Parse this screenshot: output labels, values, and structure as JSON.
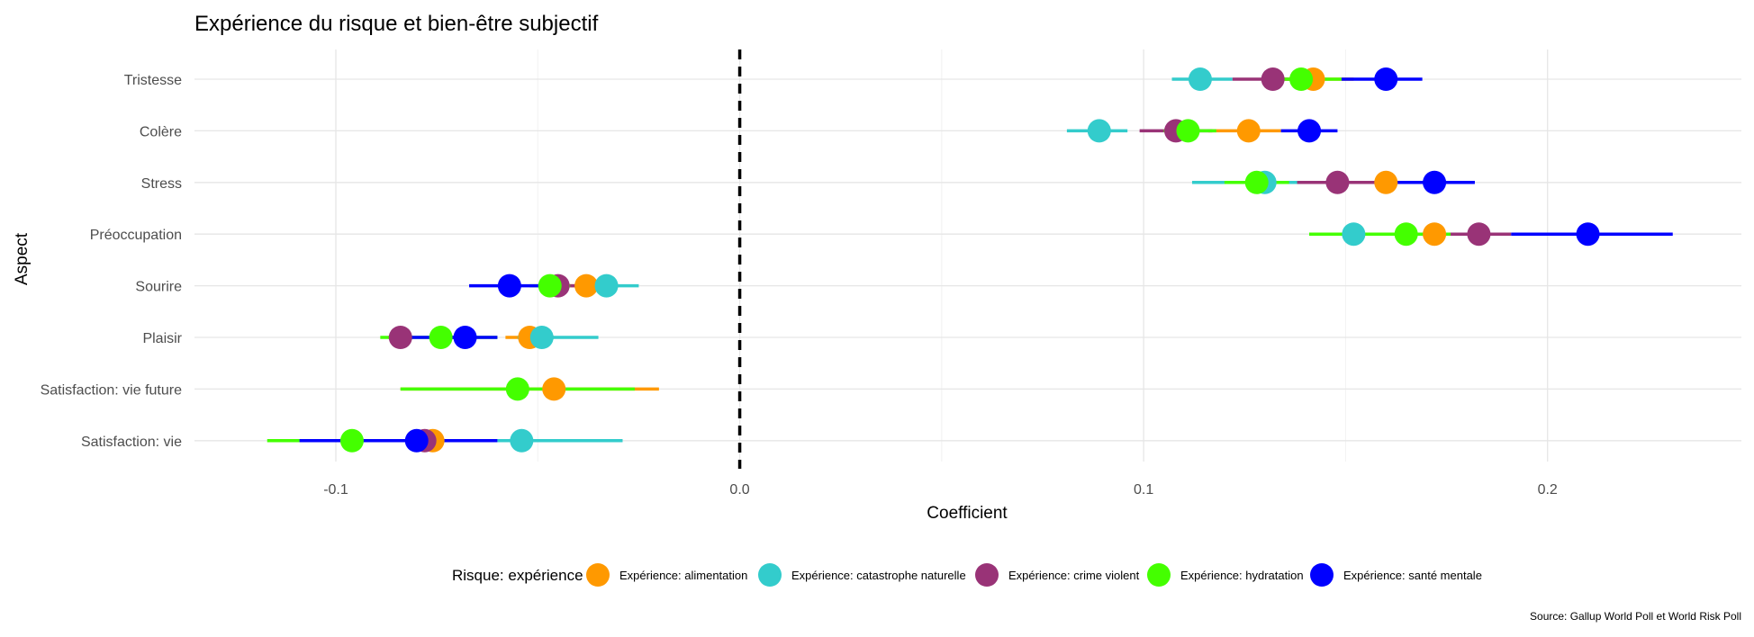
{
  "chart_data": {
    "type": "scatter",
    "title": "Expérience du risque et bien-être subjectif",
    "xlabel": "Coefficient",
    "ylabel": "Aspect",
    "caption": "Source: Gallup World Poll et World Risk Poll",
    "xlim": [
      -0.135,
      0.248
    ],
    "x_ticks": [
      {
        "value": -0.1,
        "label": "-0.1"
      },
      {
        "value": 0.0,
        "label": "0.0"
      },
      {
        "value": 0.1,
        "label": "0.1"
      },
      {
        "value": 0.2,
        "label": "0.2"
      }
    ],
    "reference_line": {
      "x": 0.0,
      "style": "dashed"
    },
    "grid": true,
    "legend": {
      "title": "Risque: expérience",
      "position": "bottom"
    },
    "categories": [
      "Tristesse",
      "Colère",
      "Stress",
      "Préoccupation",
      "Sourire",
      "Plaisir",
      "Satisfaction: vie future",
      "Satisfaction: vie"
    ],
    "series": [
      {
        "name": "Expérience: alimentation",
        "color": "#FF9900",
        "points": [
          {
            "category": "Tristesse",
            "x": 0.142,
            "lo": 0.132,
            "hi": 0.152
          },
          {
            "category": "Colère",
            "x": 0.126,
            "lo": 0.116,
            "hi": 0.134
          },
          {
            "category": "Stress",
            "x": 0.16,
            "lo": 0.15,
            "hi": 0.17
          },
          {
            "category": "Préoccupation",
            "x": 0.172,
            "lo": 0.162,
            "hi": 0.182
          },
          {
            "category": "Sourire",
            "x": -0.038,
            "lo": -0.044,
            "hi": -0.03
          },
          {
            "category": "Plaisir",
            "x": -0.052,
            "lo": -0.058,
            "hi": -0.046
          },
          {
            "category": "Satisfaction: vie future",
            "x": -0.046,
            "lo": -0.084,
            "hi": -0.02
          },
          {
            "category": "Satisfaction: vie",
            "x": -0.076,
            "lo": -0.082,
            "hi": -0.07
          }
        ]
      },
      {
        "name": "Expérience: catastrophe naturelle",
        "color": "#33CCCC",
        "points": [
          {
            "category": "Tristesse",
            "x": 0.114,
            "lo": 0.107,
            "hi": 0.122
          },
          {
            "category": "Colère",
            "x": 0.089,
            "lo": 0.081,
            "hi": 0.096
          },
          {
            "category": "Stress",
            "x": 0.13,
            "lo": 0.112,
            "hi": 0.148
          },
          {
            "category": "Préoccupation",
            "x": 0.152,
            "lo": 0.141,
            "hi": 0.163
          },
          {
            "category": "Sourire",
            "x": -0.033,
            "lo": -0.04,
            "hi": -0.025
          },
          {
            "category": "Plaisir",
            "x": -0.049,
            "lo": -0.055,
            "hi": -0.035
          },
          {
            "category": "Satisfaction: vie",
            "x": -0.054,
            "lo": -0.06,
            "hi": -0.029
          }
        ]
      },
      {
        "name": "Expérience: crime violent",
        "color": "#993377",
        "points": [
          {
            "category": "Tristesse",
            "x": 0.132,
            "lo": 0.122,
            "hi": 0.142
          },
          {
            "category": "Colère",
            "x": 0.108,
            "lo": 0.099,
            "hi": 0.117
          },
          {
            "category": "Stress",
            "x": 0.148,
            "lo": 0.138,
            "hi": 0.158
          },
          {
            "category": "Préoccupation",
            "x": 0.183,
            "lo": 0.175,
            "hi": 0.191
          },
          {
            "category": "Sourire",
            "x": -0.045,
            "lo": -0.05,
            "hi": -0.04
          },
          {
            "category": "Plaisir",
            "x": -0.084,
            "lo": -0.087,
            "hi": -0.081
          },
          {
            "category": "Satisfaction: vie",
            "x": -0.078,
            "lo": -0.084,
            "hi": -0.072
          }
        ]
      },
      {
        "name": "Expérience: hydratation",
        "color": "#44FF00",
        "points": [
          {
            "category": "Tristesse",
            "x": 0.139,
            "lo": 0.132,
            "hi": 0.149
          },
          {
            "category": "Colère",
            "x": 0.111,
            "lo": 0.105,
            "hi": 0.118
          },
          {
            "category": "Stress",
            "x": 0.128,
            "lo": 0.12,
            "hi": 0.136
          },
          {
            "category": "Préoccupation",
            "x": 0.165,
            "lo": 0.141,
            "hi": 0.176
          },
          {
            "category": "Sourire",
            "x": -0.047,
            "lo": -0.052,
            "hi": -0.042
          },
          {
            "category": "Plaisir",
            "x": -0.074,
            "lo": -0.089,
            "hi": -0.06
          },
          {
            "category": "Satisfaction: vie future",
            "x": -0.055,
            "lo": -0.084,
            "hi": -0.026
          },
          {
            "category": "Satisfaction: vie",
            "x": -0.096,
            "lo": -0.117,
            "hi": -0.08
          }
        ]
      },
      {
        "name": "Expérience: santé mentale",
        "color": "#0000FF",
        "points": [
          {
            "category": "Tristesse",
            "x": 0.16,
            "lo": 0.149,
            "hi": 0.169
          },
          {
            "category": "Colère",
            "x": 0.141,
            "lo": 0.134,
            "hi": 0.148
          },
          {
            "category": "Stress",
            "x": 0.172,
            "lo": 0.158,
            "hi": 0.182
          },
          {
            "category": "Préoccupation",
            "x": 0.21,
            "lo": 0.191,
            "hi": 0.231
          },
          {
            "category": "Sourire",
            "x": -0.057,
            "lo": -0.067,
            "hi": -0.047
          },
          {
            "category": "Plaisir",
            "x": -0.068,
            "lo": -0.084,
            "hi": -0.06
          },
          {
            "category": "Satisfaction: vie",
            "x": -0.08,
            "lo": -0.109,
            "hi": -0.06
          }
        ]
      }
    ]
  }
}
